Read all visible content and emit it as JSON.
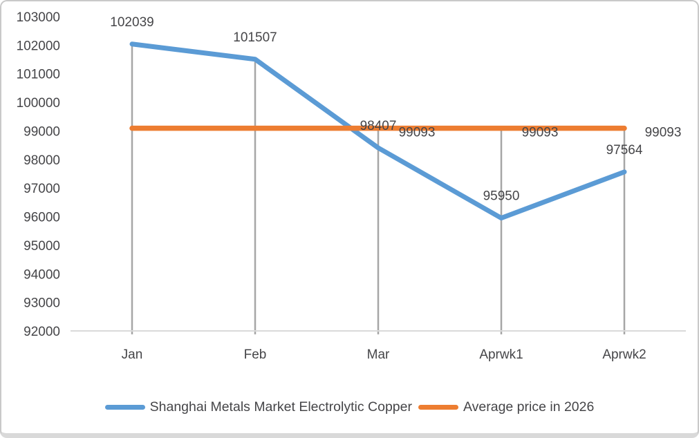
{
  "chart_data": {
    "type": "line",
    "categories": [
      "Jan",
      "Feb",
      "Mar",
      "Aprwk1",
      "Aprwk2"
    ],
    "series": [
      {
        "name": "Shanghai Metals Market Electrolytic Copper",
        "color": "#5B9BD5",
        "values": [
          102039,
          101507,
          98407,
          95950,
          97564
        ],
        "data_labels": [
          "102039",
          "101507",
          "98407",
          "95950",
          "97564"
        ]
      },
      {
        "name": "Average price in 2026",
        "color": "#ED7D31",
        "values": [
          99093,
          99093,
          99093,
          99093,
          99093
        ],
        "data_labels": [
          null,
          null,
          "99093",
          "99093",
          "99093"
        ]
      }
    ],
    "y_axis": {
      "min": 92000,
      "max": 103000,
      "step": 1000,
      "ticks": [
        "103000",
        "102000",
        "101000",
        "100000",
        "99000",
        "98000",
        "97000",
        "96000",
        "95000",
        "94000",
        "93000",
        "92000"
      ]
    },
    "x_axis": {
      "labels": [
        "Jan",
        "Feb",
        "Mar",
        "Aprwk1",
        "Aprwk2"
      ]
    },
    "grid": {
      "drop_lines": true,
      "drop_line_color": "#A6A6A6",
      "axis_line_color": "#D9D9D9"
    },
    "legend_position": "bottom",
    "title": ""
  },
  "colors": {
    "copper_series": "#5B9BD5",
    "average_series": "#ED7D31",
    "axis_text": "#454548",
    "card_border": "#c9c9c9",
    "card_bottom_strip": "#d9d9d9"
  }
}
